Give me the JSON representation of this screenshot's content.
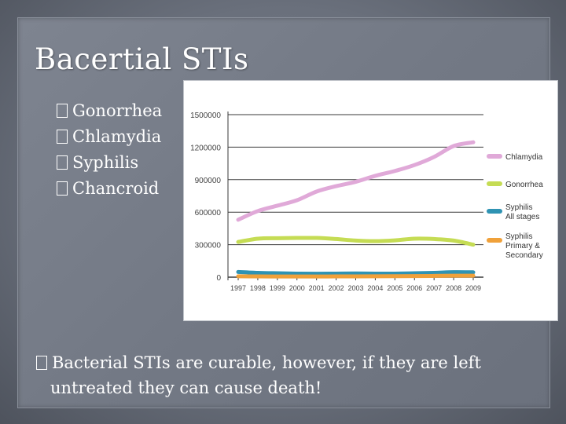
{
  "slide": {
    "title": "Bacertial STIs",
    "bullets": [
      "Gonorrhea",
      "Chlamydia",
      "Syphilis",
      "Chancroid"
    ],
    "body_line1": "Bacterial STIs are curable, however, if they are left",
    "body_line2": "untreated they can cause death!"
  },
  "chart_data": {
    "type": "line",
    "title": "",
    "xlabel": "",
    "ylabel": "",
    "x": [
      "1997",
      "1998",
      "1999",
      "2000",
      "2001",
      "2002",
      "2003",
      "2004",
      "2005",
      "2006",
      "2007",
      "2008",
      "2009"
    ],
    "y_ticks": [
      "0",
      "300000",
      "600000",
      "900000",
      "1200000",
      "1500000"
    ],
    "ylim": [
      0,
      1500000
    ],
    "grid": true,
    "legend_position": "right",
    "series": [
      {
        "name": "Chlamydia",
        "color": "#e0a9d8",
        "values": [
          530000,
          610000,
          660000,
          710000,
          790000,
          840000,
          880000,
          935000,
          980000,
          1035000,
          1110000,
          1210000,
          1245000
        ]
      },
      {
        "name": "Gonorrhea",
        "color": "#c5dc54",
        "values": [
          325000,
          355000,
          360000,
          362000,
          362000,
          352000,
          338000,
          332000,
          340000,
          355000,
          352000,
          338000,
          300000
        ]
      },
      {
        "name": "Syphilis All stages",
        "color": "#2f93b3",
        "values": [
          48000,
          40000,
          36000,
          33000,
          32000,
          33000,
          34000,
          33000,
          33000,
          36000,
          40000,
          46000,
          45000
        ]
      },
      {
        "name": "Syphilis Primary & Secondary",
        "color": "#f0a13a",
        "values": [
          8000,
          7000,
          6500,
          6000,
          6000,
          6800,
          7200,
          7800,
          8700,
          9800,
          11500,
          13500,
          13900
        ]
      }
    ],
    "legend_labels": [
      [
        "Chlamydia"
      ],
      [
        "Gonorrhea"
      ],
      [
        "Syphilis",
        "All stages"
      ],
      [
        "Syphilis",
        "Primary &",
        "Secondary"
      ]
    ]
  }
}
